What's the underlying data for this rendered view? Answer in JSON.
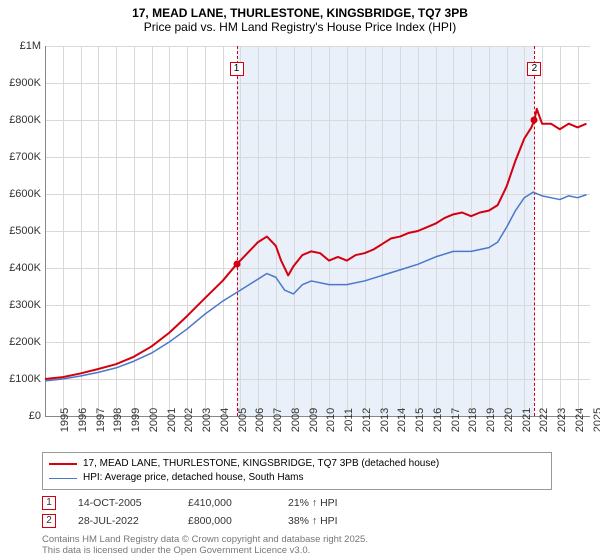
{
  "title": {
    "line1": "17, MEAD LANE, THURLESTONE, KINGSBRIDGE, TQ7 3PB",
    "line2": "Price paid vs. HM Land Registry's House Price Index (HPI)"
  },
  "chart": {
    "type": "line",
    "background_color": "#ffffff",
    "shaded_band_color": "#eaf0f9",
    "grid_color": "#d9d9d9",
    "axis_color": "#888888",
    "y": {
      "min": 0,
      "max": 1000000,
      "ticks": [
        0,
        100000,
        200000,
        300000,
        400000,
        500000,
        600000,
        700000,
        800000,
        900000,
        1000000
      ],
      "labels": [
        "£0",
        "£100K",
        "£200K",
        "£300K",
        "£400K",
        "£500K",
        "£600K",
        "£700K",
        "£800K",
        "£900K",
        "£1M"
      ]
    },
    "x": {
      "min": 1995,
      "max": 2025.7,
      "ticks": [
        1995,
        1996,
        1997,
        1998,
        1999,
        2000,
        2001,
        2002,
        2003,
        2004,
        2005,
        2006,
        2007,
        2008,
        2009,
        2010,
        2011,
        2012,
        2013,
        2014,
        2015,
        2016,
        2017,
        2018,
        2019,
        2020,
        2021,
        2022,
        2023,
        2024,
        2025
      ],
      "labels": [
        "1995",
        "1996",
        "1997",
        "1998",
        "1999",
        "2000",
        "2001",
        "2002",
        "2003",
        "2004",
        "2005",
        "2006",
        "2007",
        "2008",
        "2009",
        "2010",
        "2011",
        "2012",
        "2013",
        "2014",
        "2015",
        "2016",
        "2017",
        "2018",
        "2019",
        "2020",
        "2021",
        "2022",
        "2023",
        "2024",
        "2025"
      ]
    },
    "shaded_band": {
      "x_start": 2005.79,
      "x_end": 2022.57
    },
    "series": [
      {
        "id": "property",
        "label": "17, MEAD LANE, THURLESTONE, KINGSBRIDGE, TQ7 3PB (detached house)",
        "color": "#d4000f",
        "width": 2,
        "data": [
          [
            1995,
            100000
          ],
          [
            1996,
            105000
          ],
          [
            1997,
            115000
          ],
          [
            1998,
            127000
          ],
          [
            1999,
            140000
          ],
          [
            2000,
            160000
          ],
          [
            2001,
            188000
          ],
          [
            2002,
            225000
          ],
          [
            2003,
            270000
          ],
          [
            2004,
            318000
          ],
          [
            2005,
            365000
          ],
          [
            2005.79,
            410000
          ],
          [
            2006,
            420000
          ],
          [
            2006.5,
            445000
          ],
          [
            2007,
            470000
          ],
          [
            2007.5,
            485000
          ],
          [
            2008,
            460000
          ],
          [
            2008.3,
            420000
          ],
          [
            2008.7,
            380000
          ],
          [
            2009,
            405000
          ],
          [
            2009.5,
            435000
          ],
          [
            2010,
            445000
          ],
          [
            2010.5,
            440000
          ],
          [
            2011,
            420000
          ],
          [
            2011.5,
            430000
          ],
          [
            2012,
            420000
          ],
          [
            2012.5,
            435000
          ],
          [
            2013,
            440000
          ],
          [
            2013.5,
            450000
          ],
          [
            2014,
            465000
          ],
          [
            2014.5,
            480000
          ],
          [
            2015,
            485000
          ],
          [
            2015.5,
            495000
          ],
          [
            2016,
            500000
          ],
          [
            2016.5,
            510000
          ],
          [
            2017,
            520000
          ],
          [
            2017.5,
            535000
          ],
          [
            2018,
            545000
          ],
          [
            2018.5,
            550000
          ],
          [
            2019,
            540000
          ],
          [
            2019.5,
            550000
          ],
          [
            2020,
            555000
          ],
          [
            2020.5,
            570000
          ],
          [
            2021,
            620000
          ],
          [
            2021.5,
            690000
          ],
          [
            2022,
            750000
          ],
          [
            2022.4,
            780000
          ],
          [
            2022.57,
            800000
          ],
          [
            2022.7,
            830000
          ],
          [
            2023,
            790000
          ],
          [
            2023.5,
            790000
          ],
          [
            2024,
            775000
          ],
          [
            2024.5,
            790000
          ],
          [
            2025,
            780000
          ],
          [
            2025.5,
            790000
          ]
        ]
      },
      {
        "id": "hpi",
        "label": "HPI: Average price, detached house, South Hams",
        "color": "#4a78c9",
        "width": 1.5,
        "data": [
          [
            1995,
            95000
          ],
          [
            1996,
            100000
          ],
          [
            1997,
            108000
          ],
          [
            1998,
            118000
          ],
          [
            1999,
            130000
          ],
          [
            2000,
            148000
          ],
          [
            2001,
            170000
          ],
          [
            2002,
            200000
          ],
          [
            2003,
            235000
          ],
          [
            2004,
            275000
          ],
          [
            2005,
            310000
          ],
          [
            2006,
            340000
          ],
          [
            2007,
            370000
          ],
          [
            2007.5,
            385000
          ],
          [
            2008,
            375000
          ],
          [
            2008.5,
            340000
          ],
          [
            2009,
            330000
          ],
          [
            2009.5,
            355000
          ],
          [
            2010,
            365000
          ],
          [
            2011,
            355000
          ],
          [
            2012,
            355000
          ],
          [
            2013,
            365000
          ],
          [
            2014,
            380000
          ],
          [
            2015,
            395000
          ],
          [
            2016,
            410000
          ],
          [
            2017,
            430000
          ],
          [
            2018,
            445000
          ],
          [
            2019,
            445000
          ],
          [
            2020,
            455000
          ],
          [
            2020.5,
            470000
          ],
          [
            2021,
            510000
          ],
          [
            2021.5,
            555000
          ],
          [
            2022,
            590000
          ],
          [
            2022.5,
            605000
          ],
          [
            2023,
            595000
          ],
          [
            2023.5,
            590000
          ],
          [
            2024,
            585000
          ],
          [
            2024.5,
            595000
          ],
          [
            2025,
            590000
          ],
          [
            2025.5,
            598000
          ]
        ]
      }
    ],
    "sale_markers": [
      {
        "num": "1",
        "x": 2005.79,
        "y": 410000,
        "box_color": "#d4000f"
      },
      {
        "num": "2",
        "x": 2022.57,
        "y": 800000,
        "box_color": "#d4000f"
      }
    ],
    "marker_line_color": "#d4000f"
  },
  "legend": {
    "border_color": "#999999"
  },
  "sales_table": {
    "rows": [
      {
        "num": "1",
        "date": "14-OCT-2005",
        "price": "£410,000",
        "pct": "21% ↑ HPI",
        "box_color": "#d4000f"
      },
      {
        "num": "2",
        "date": "28-JUL-2022",
        "price": "£800,000",
        "pct": "38% ↑ HPI",
        "box_color": "#d4000f"
      }
    ]
  },
  "footer": {
    "line1": "Contains HM Land Registry data © Crown copyright and database right 2025.",
    "line2": "This data is licensed under the Open Government Licence v3.0."
  }
}
